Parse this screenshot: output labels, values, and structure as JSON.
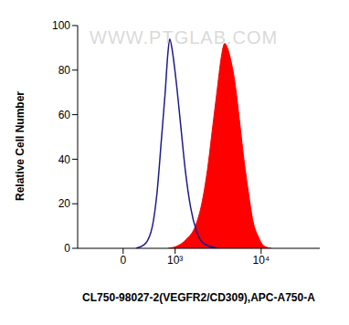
{
  "chart_data": {
    "type": "area",
    "x_label": "CL750-98027-2(VEGFR2/CD309),APC-A750-A",
    "y_label": "Relative Cell Number",
    "annotations": [
      "WWW.PTGLAB.COM"
    ],
    "xlim": [
      -800,
      40000
    ],
    "xticks": [
      {
        "value": 0,
        "label": "0"
      },
      {
        "value": 1000,
        "label": "10³"
      },
      {
        "value": 10000,
        "label": "10⁴"
      }
    ],
    "ylim": [
      0,
      100
    ],
    "yticks": [
      0,
      20,
      40,
      60,
      80,
      100
    ],
    "grid": false,
    "series": [
      {
        "type": "line",
        "color": "#1c1c8c",
        "x": [
          148,
          284,
          416,
          511,
          616,
          706,
          782,
          833,
          917,
          1034,
          1198,
          1379,
          1623,
          1901,
          2215,
          2705,
          3444
        ],
        "values": [
          0,
          2,
          10,
          25,
          50,
          70,
          88,
          94,
          88,
          75,
          55,
          35,
          18,
          8,
          3,
          1,
          0
        ]
      },
      {
        "type": "area",
        "color": "#ff0000",
        "x": [
          782,
          1066,
          1419,
          1853,
          2215,
          2580,
          2984,
          3367,
          3698,
          4064,
          4360,
          4773,
          5237,
          5874,
          6575,
          7357,
          8230,
          9400,
          10707,
          12771
        ],
        "values": [
          0,
          1,
          4,
          10,
          20,
          35,
          55,
          72,
          85,
          92,
          90,
          84,
          75,
          58,
          40,
          25,
          12,
          5,
          1,
          0
        ]
      }
    ]
  }
}
